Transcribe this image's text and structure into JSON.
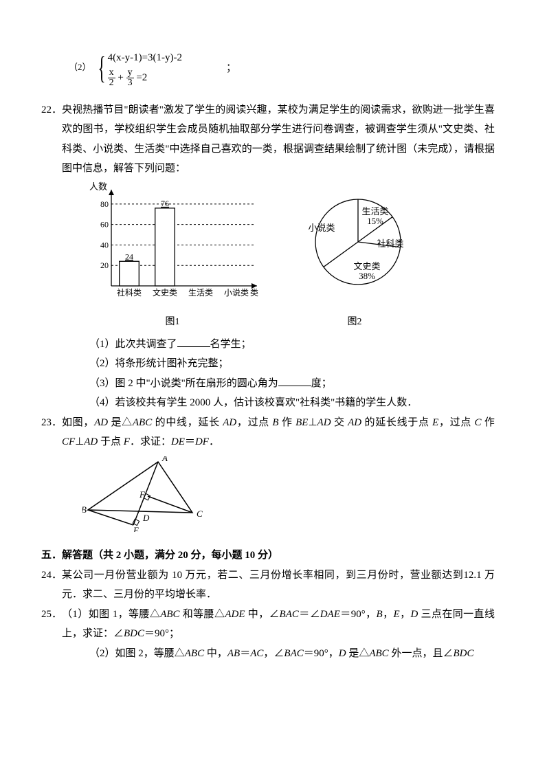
{
  "q21": {
    "sub2_label": "（2）",
    "eq1": "4(x-y-1)=3(1-y)-2",
    "eq2_lhs_n1": "x",
    "eq2_lhs_d1": "2",
    "eq2_lhs_n2": "y",
    "eq2_lhs_d2": "3",
    "eq2_rhs": "=2",
    "trailer": "；"
  },
  "q22": {
    "num": "22．",
    "text": "央视热播节目\"朗读者\"激发了学生的阅读兴趣，某校为满足学生的阅读需求，欲购进一批学生喜欢的图书，学校组织学生会成员随机抽取部分学生进行问卷调查，被调查学生须从\"文史类、社科类、小说类、生活类\"中选择自己喜欢的一类，根据调查结果绘制了统计图（未完成），请根据图中信息，解答下列问题：",
    "sub1": "（1）此次共调查了",
    "sub1_tail": "名学生；",
    "sub2": "（2）将条形统计图补充完整；",
    "sub3": "（3）图 2 中\"小说类\"所在扇形的圆心角为",
    "sub3_tail": "度；",
    "sub4": "（4）若该校共有学生 2000 人，估计该校喜欢\"社科类\"书籍的学生人数．"
  },
  "barChart": {
    "yAxisLabel": "人数",
    "xAxisLabel": "类别",
    "yTicks": [
      20,
      40,
      60,
      80
    ],
    "categories": [
      "社科类",
      "文史类",
      "生活类",
      "小说类"
    ],
    "values": [
      24,
      76,
      null,
      null
    ],
    "barColor": "#ffffff",
    "barBorder": "#000000",
    "gridColor": "#000000",
    "gridDash": "3,3",
    "label": "图1"
  },
  "pieChart": {
    "slices": [
      {
        "label": "生活类",
        "pct": "15%",
        "start": 0,
        "end": 54
      },
      {
        "label": "社科类",
        "pct": "",
        "start": 54,
        "end": 97.2
      },
      {
        "label": "文史类",
        "pct": "38%",
        "start": 97.2,
        "end": 234
      },
      {
        "label": "小说类",
        "pct": "",
        "start": 234,
        "end": 360
      }
    ],
    "stroke": "#000000",
    "fill": "#ffffff",
    "label": "图2"
  },
  "q23": {
    "num": "23．",
    "text_a": "如图，",
    "AD": "AD",
    "txt_b": " 是△",
    "ABC": "ABC",
    "txt_c": " 的中线，延长 ",
    "txt_d": "，过点 ",
    "B": "B",
    "txt_e": " 作 ",
    "BE": "BE",
    "perp": "⊥",
    "txt_f": " 交 ",
    "txt_g": " 的延长线于点 ",
    "E": "E",
    "txt_h": "，过点 ",
    "C": "C",
    "txt_i": " 作 ",
    "CF": "CF",
    "txt_j": " 于点 ",
    "F": "F",
    "txt_k": "．求证：",
    "DE": "DE",
    "eq": "＝",
    "DF": "DF",
    "txt_l": "．",
    "figLabels": {
      "A": "A",
      "B": "B",
      "C": "C",
      "D": "D",
      "E": "E",
      "F": "F"
    }
  },
  "section5": "五．解答题（共 2 小题，满分 20 分，每小题 10 分）",
  "q24": {
    "num": "24．",
    "text": "某公司一月份营业额为 10 万元，若二、三月份增长率相同，到三月份时，营业额达到12.1 万元．求二、三月份的平均增长率．"
  },
  "q25": {
    "num": "25．",
    "sub1": "（1）如图 1，等腰△",
    "ABC": "ABC",
    "t1": " 和等腰△",
    "ADE": "ADE",
    "t2": " 中，∠",
    "BAC": "BAC",
    "t3": "＝∠",
    "DAE": "DAE",
    "t4": "＝90°，",
    "B": "B",
    "c1": "，",
    "E": "E",
    "c2": "，",
    "D": "D",
    "t5": " 三点在同一直线上，求证：∠",
    "BDC": "BDC",
    "t6": "＝90°；",
    "sub2": "（2）如图 2，等腰△",
    "t7": " 中，",
    "AB": "AB",
    "eq": "＝",
    "AC": "AC",
    "t8": "，∠",
    "t9": "＝90°，",
    "t10": " 是△",
    "t11": " 外一点，且∠"
  }
}
